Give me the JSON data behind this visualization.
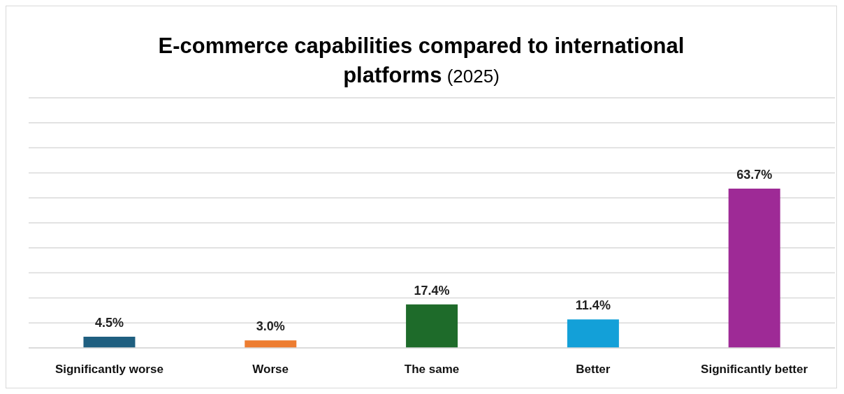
{
  "chart_data": {
    "type": "bar",
    "title": "E-commerce capabilities compared to international platforms",
    "subtitle": "(2025)",
    "categories": [
      "Significantly worse",
      "Worse",
      "The same",
      "Better",
      "Significantly better"
    ],
    "values": [
      4.5,
      3.0,
      17.4,
      11.4,
      63.7
    ],
    "colors": [
      "#1f5f80",
      "#ed7d31",
      "#1e6b2a",
      "#13a0d8",
      "#9e2a96"
    ],
    "value_labels": [
      "4.5%",
      "3.0%",
      "17.4%",
      "11.4%",
      "63.7%"
    ],
    "ylim": [
      0,
      100
    ],
    "yticks": [
      {
        "value": 0,
        "label": null
      },
      {
        "value": 10,
        "label": null
      },
      {
        "value": 20,
        "label": null
      },
      {
        "value": 30,
        "label": null
      },
      {
        "value": 40,
        "label": null
      },
      {
        "value": 50,
        "label": null
      },
      {
        "value": 60,
        "label": null
      },
      {
        "value": 70,
        "label": null
      },
      {
        "value": 80,
        "label": null
      },
      {
        "value": 90,
        "label": null
      },
      {
        "value": 100,
        "label": null
      }
    ],
    "grid": "y",
    "tick_labels": "x",
    "legend": false
  }
}
